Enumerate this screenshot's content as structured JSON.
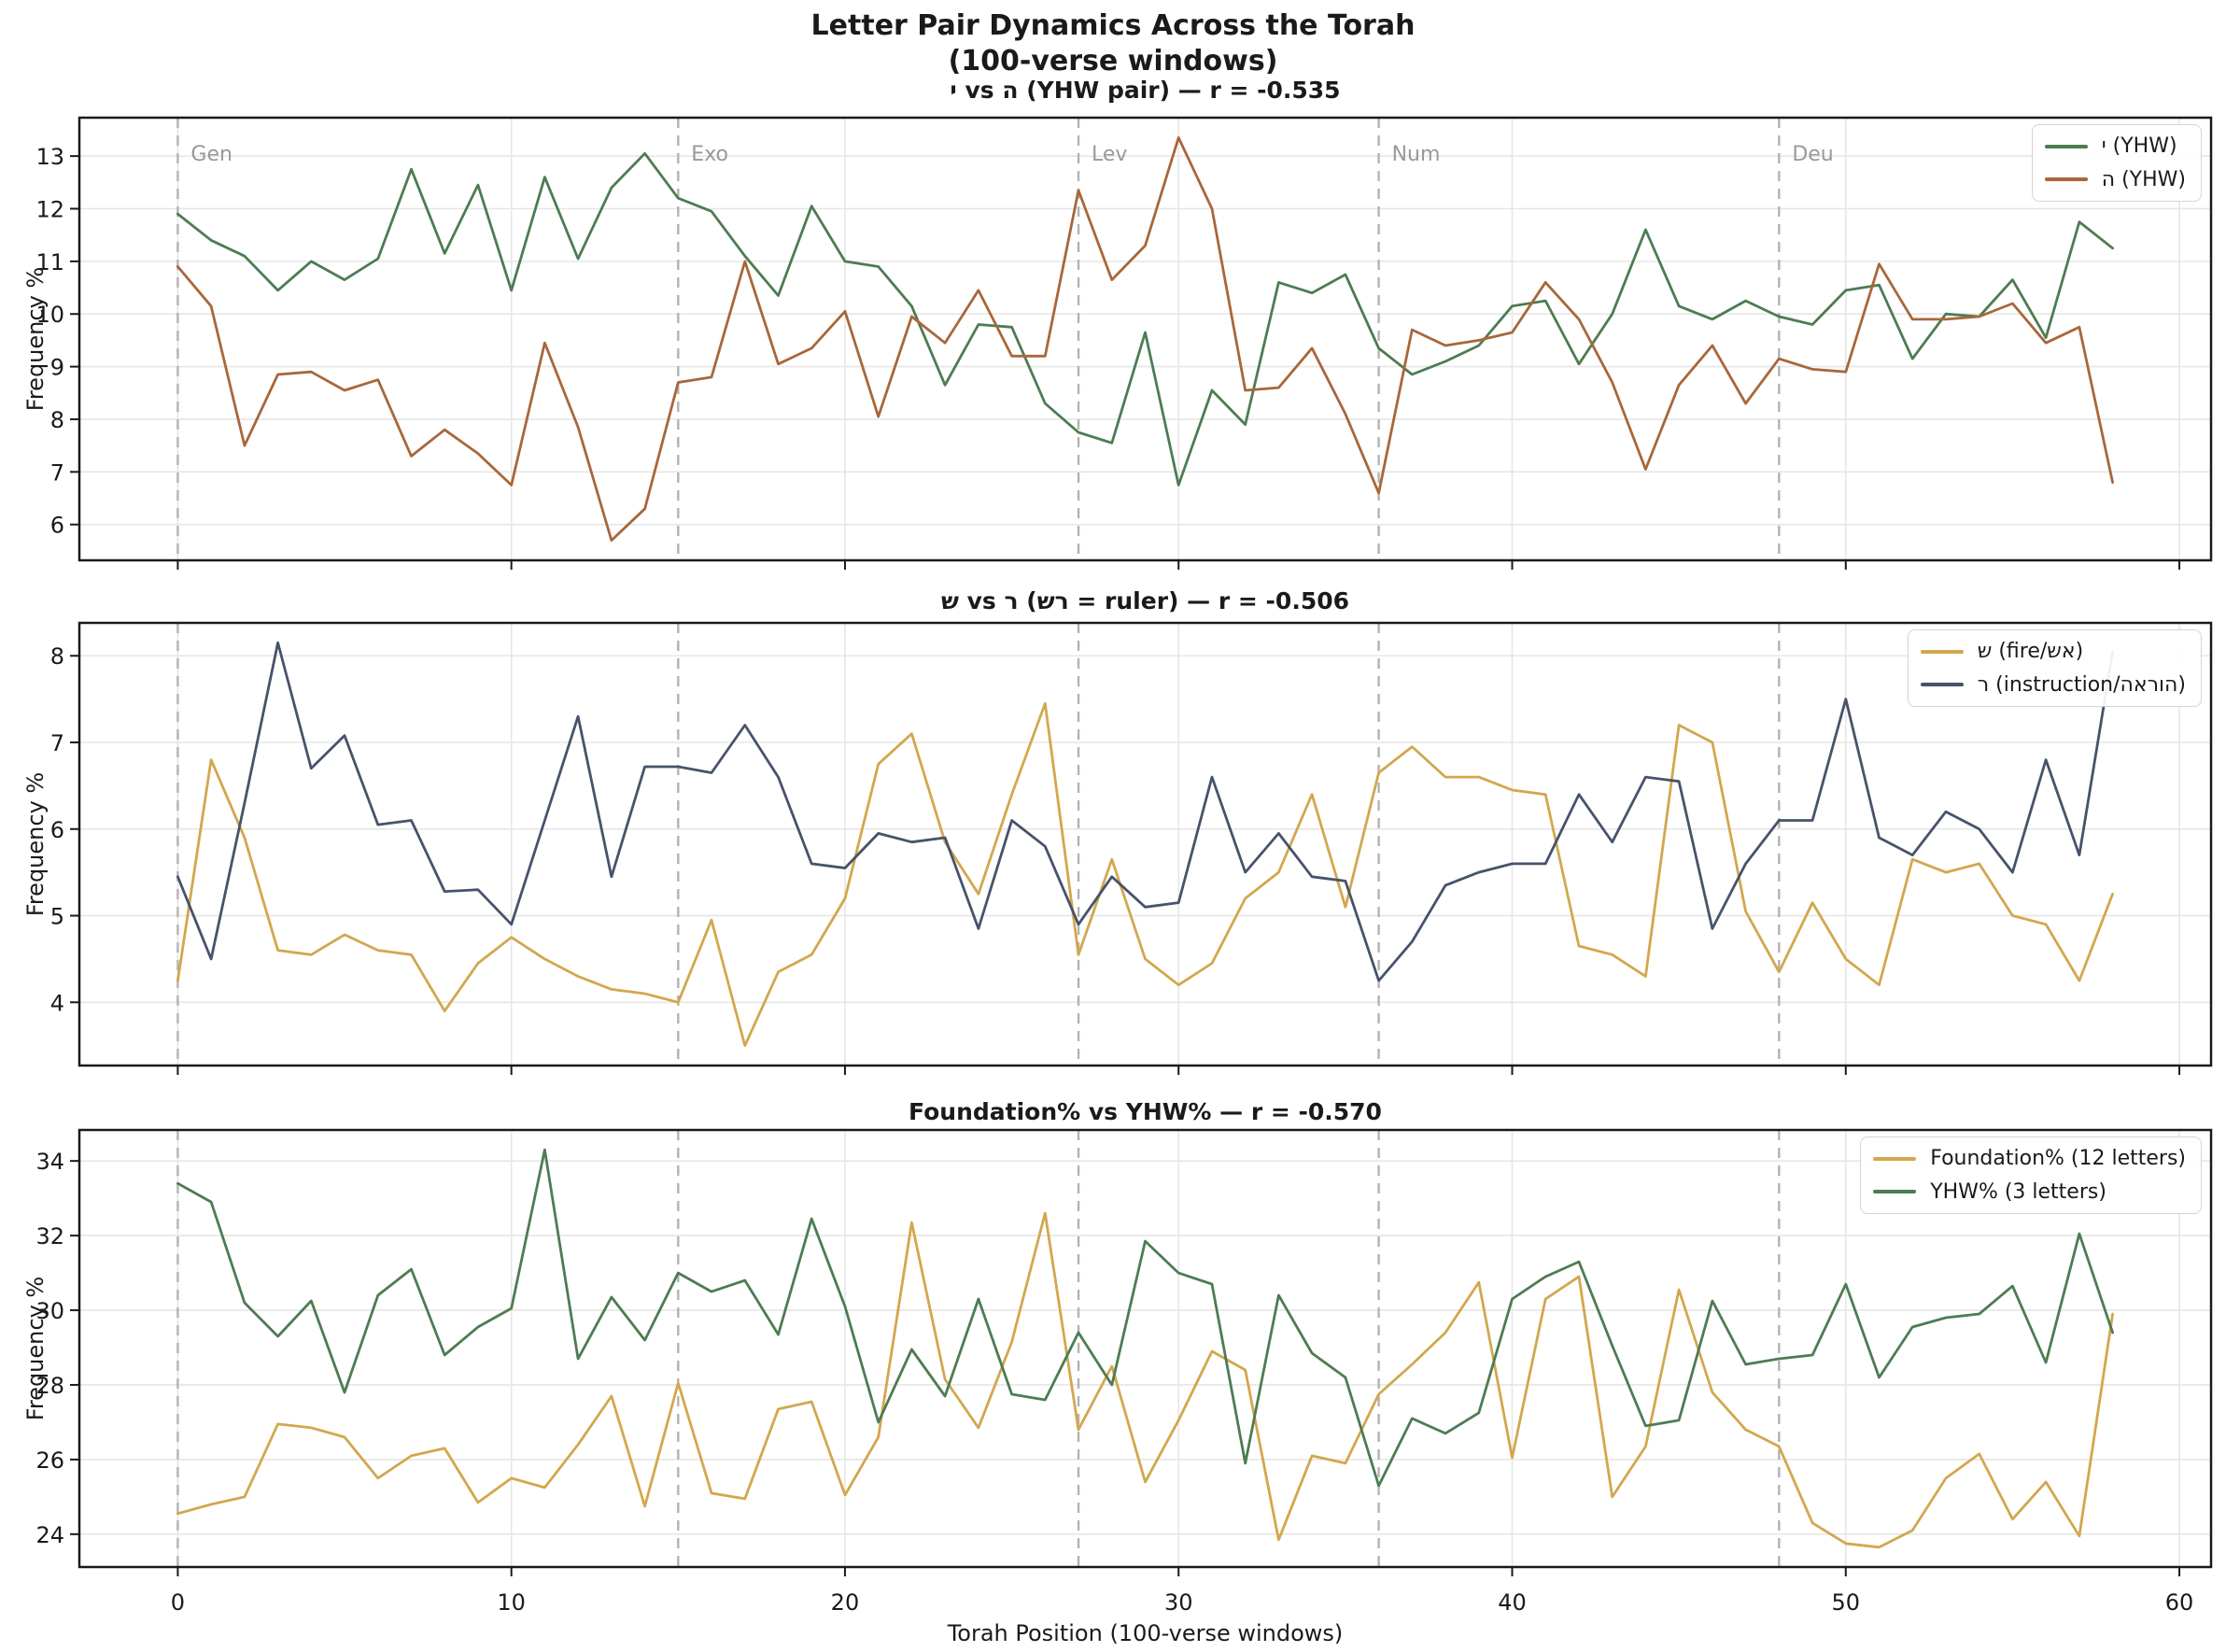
{
  "figure": {
    "title_line1": "Letter Pair Dynamics Across the Torah",
    "title_line2": "(100-verse windows)",
    "xlabel": "Torah Position (100-verse windows)",
    "ylabel": "Frequency %",
    "background": "#ffffff",
    "text_color": "#1a1a1a",
    "grid_color": "#e6e6e6"
  },
  "x_axis": {
    "ticks": [
      0,
      10,
      20,
      30,
      40,
      50,
      60
    ],
    "lim": [
      -2.95,
      60.95
    ]
  },
  "book_markers": {
    "color": "#b3b3b3",
    "label_color": "#999999",
    "items": [
      {
        "label": "Gen",
        "x": 0
      },
      {
        "label": "Exo",
        "x": 15
      },
      {
        "label": "Lev",
        "x": 27
      },
      {
        "label": "Num",
        "x": 36
      },
      {
        "label": "Deu",
        "x": 48
      }
    ]
  },
  "chart_data": [
    {
      "type": "line",
      "title": "י vs ה (YHW pair) — r = -0.535",
      "xlabel": "",
      "ylabel": "Frequency %",
      "x_start": 0,
      "x_step": 1,
      "yticks": [
        6,
        7,
        8,
        9,
        10,
        11,
        12,
        13
      ],
      "ylim": [
        5.32,
        13.73
      ],
      "grid": true,
      "legend_position": "upper right",
      "series": [
        {
          "name": "י (YHW)",
          "color": "#4d7c52",
          "values": [
            11.9,
            11.4,
            11.1,
            10.45,
            11.0,
            10.65,
            11.05,
            12.75,
            11.15,
            12.45,
            10.45,
            12.6,
            11.05,
            12.4,
            13.05,
            12.2,
            11.95,
            11.1,
            10.35,
            12.05,
            11.0,
            10.9,
            10.15,
            8.65,
            9.8,
            9.75,
            8.3,
            7.75,
            7.55,
            9.65,
            6.75,
            8.55,
            7.9,
            10.6,
            10.4,
            10.75,
            9.35,
            8.85,
            9.1,
            9.4,
            10.15,
            10.25,
            9.05,
            10.0,
            11.6,
            10.15,
            9.9,
            10.25,
            9.95,
            9.8,
            10.45,
            10.55,
            9.15,
            10.0,
            9.95,
            10.65,
            9.55,
            11.75,
            11.25
          ]
        },
        {
          "name": "ה (YHW)",
          "color": "#a8673a",
          "values": [
            10.9,
            10.15,
            7.5,
            8.85,
            8.9,
            8.55,
            8.75,
            7.3,
            7.8,
            7.35,
            6.75,
            9.45,
            7.85,
            5.7,
            6.3,
            8.7,
            8.8,
            11.0,
            9.05,
            9.35,
            10.05,
            8.05,
            9.95,
            9.45,
            10.45,
            9.2,
            9.2,
            12.35,
            10.65,
            11.3,
            13.35,
            12.0,
            8.55,
            8.6,
            9.35,
            8.1,
            6.6,
            9.7,
            9.4,
            9.5,
            9.65,
            10.6,
            9.9,
            8.7,
            7.05,
            8.65,
            9.4,
            8.3,
            9.15,
            8.95,
            8.9,
            10.95,
            9.9,
            9.9,
            9.95,
            10.2,
            9.45,
            9.75,
            6.8
          ]
        }
      ]
    },
    {
      "type": "line",
      "title": "ש vs ר (שר = ruler) — r = -0.506",
      "xlabel": "",
      "ylabel": "Frequency %",
      "x_start": 0,
      "x_step": 1,
      "yticks": [
        4,
        5,
        6,
        7,
        8
      ],
      "ylim": [
        3.27,
        8.38
      ],
      "grid": true,
      "legend_position": "upper right",
      "series": [
        {
          "name": "ש (fire/שא)",
          "color": "#d2a74e",
          "values": [
            4.25,
            6.8,
            5.9,
            4.6,
            4.55,
            4.78,
            4.6,
            4.55,
            3.9,
            4.45,
            4.75,
            4.5,
            4.3,
            4.15,
            4.1,
            4.0,
            4.95,
            3.5,
            4.35,
            4.55,
            5.2,
            6.75,
            7.1,
            5.85,
            5.25,
            6.4,
            7.45,
            4.55,
            5.65,
            4.5,
            4.2,
            4.45,
            5.2,
            5.5,
            6.4,
            5.1,
            6.65,
            6.95,
            6.6,
            6.6,
            6.45,
            6.4,
            4.65,
            4.55,
            4.3,
            7.2,
            7.0,
            5.05,
            4.35,
            5.15,
            4.5,
            4.2,
            5.65,
            5.5,
            5.6,
            5.0,
            4.9,
            4.25,
            5.25
          ]
        },
        {
          "name": "ר (instruction/הארוה)",
          "color": "#46536b",
          "values": [
            5.45,
            4.5,
            6.3,
            8.15,
            6.7,
            7.08,
            6.05,
            6.1,
            5.28,
            5.3,
            4.9,
            6.1,
            7.3,
            5.45,
            6.72,
            6.72,
            6.65,
            7.2,
            6.6,
            5.6,
            5.55,
            5.95,
            5.85,
            5.9,
            4.85,
            6.1,
            5.8,
            4.9,
            5.45,
            5.1,
            5.15,
            6.6,
            5.5,
            5.95,
            5.45,
            5.4,
            4.25,
            4.7,
            5.35,
            5.5,
            5.6,
            5.6,
            6.4,
            5.85,
            6.6,
            6.55,
            4.85,
            5.6,
            6.1,
            6.1,
            7.5,
            5.9,
            5.7,
            6.2,
            6.0,
            5.5,
            6.8,
            5.7,
            8.05
          ]
        }
      ]
    },
    {
      "type": "line",
      "title": "Foundation% vs YHW% — r = -0.570",
      "xlabel": "Torah Position (100-verse windows)",
      "ylabel": "Frequency %",
      "x_start": 0,
      "x_step": 1,
      "yticks": [
        24,
        26,
        28,
        30,
        32,
        34
      ],
      "ylim": [
        23.12,
        34.83
      ],
      "grid": true,
      "legend_position": "upper right",
      "series": [
        {
          "name": "Foundation% (12 letters)",
          "color": "#d2a74e",
          "values": [
            24.55,
            24.8,
            25.0,
            26.95,
            26.85,
            26.6,
            25.5,
            26.1,
            26.3,
            24.85,
            25.5,
            25.25,
            26.4,
            27.7,
            24.75,
            28.05,
            25.1,
            24.95,
            27.35,
            27.55,
            25.05,
            26.6,
            32.35,
            28.15,
            26.85,
            29.15,
            32.6,
            26.8,
            28.5,
            25.4,
            27.05,
            28.9,
            28.4,
            23.85,
            26.1,
            25.9,
            27.75,
            28.55,
            29.4,
            30.75,
            26.05,
            30.3,
            30.9,
            25.0,
            26.35,
            30.55,
            27.8,
            26.8,
            26.35,
            24.3,
            23.75,
            23.65,
            24.1,
            25.5,
            26.15,
            24.4,
            25.4,
            23.95,
            29.9
          ]
        },
        {
          "name": "YHW% (3 letters)",
          "color": "#4d7c52",
          "values": [
            33.4,
            32.9,
            30.2,
            29.3,
            30.25,
            27.8,
            30.4,
            31.1,
            28.8,
            29.55,
            30.05,
            34.3,
            28.7,
            30.35,
            29.2,
            31.0,
            30.5,
            30.8,
            29.35,
            32.45,
            30.1,
            27.0,
            28.95,
            27.7,
            30.3,
            27.75,
            27.6,
            29.4,
            28.0,
            31.85,
            31.0,
            30.7,
            25.9,
            30.4,
            28.85,
            28.2,
            25.3,
            27.1,
            26.7,
            27.25,
            30.3,
            30.9,
            31.3,
            29.05,
            26.9,
            27.05,
            30.25,
            28.55,
            28.7,
            28.8,
            30.7,
            28.2,
            29.55,
            29.8,
            29.9,
            30.65,
            28.6,
            32.05,
            29.4
          ]
        }
      ]
    }
  ]
}
